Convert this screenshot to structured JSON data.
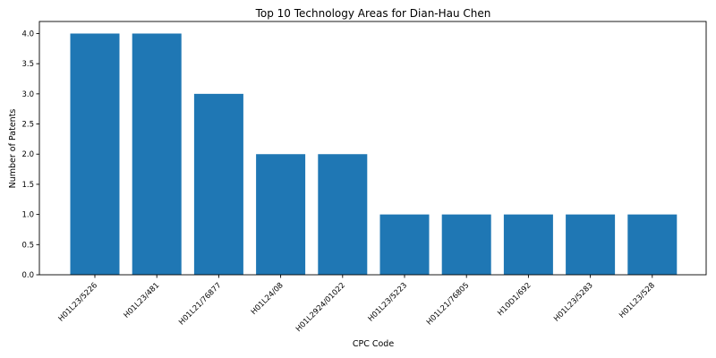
{
  "chart_data": {
    "type": "bar",
    "title": "Top 10 Technology Areas for Dian-Hau Chen",
    "xlabel": "CPC Code",
    "ylabel": "Number of Patents",
    "categories": [
      "H01L23/5226",
      "H01L23/481",
      "H01L21/76877",
      "H01L24/08",
      "H01L2924/01022",
      "H01L23/5223",
      "H01L21/76805",
      "H10D1/692",
      "H01L23/5283",
      "H01L23/528"
    ],
    "values": [
      4,
      4,
      3,
      2,
      2,
      1,
      1,
      1,
      1,
      1
    ],
    "ylim": [
      0,
      4.2
    ],
    "yticks": [
      "0.0",
      "0.5",
      "1.0",
      "1.5",
      "2.0",
      "2.5",
      "3.0",
      "3.5",
      "4.0"
    ],
    "grid": false,
    "colors": {
      "bar": "#1f77b4"
    }
  }
}
